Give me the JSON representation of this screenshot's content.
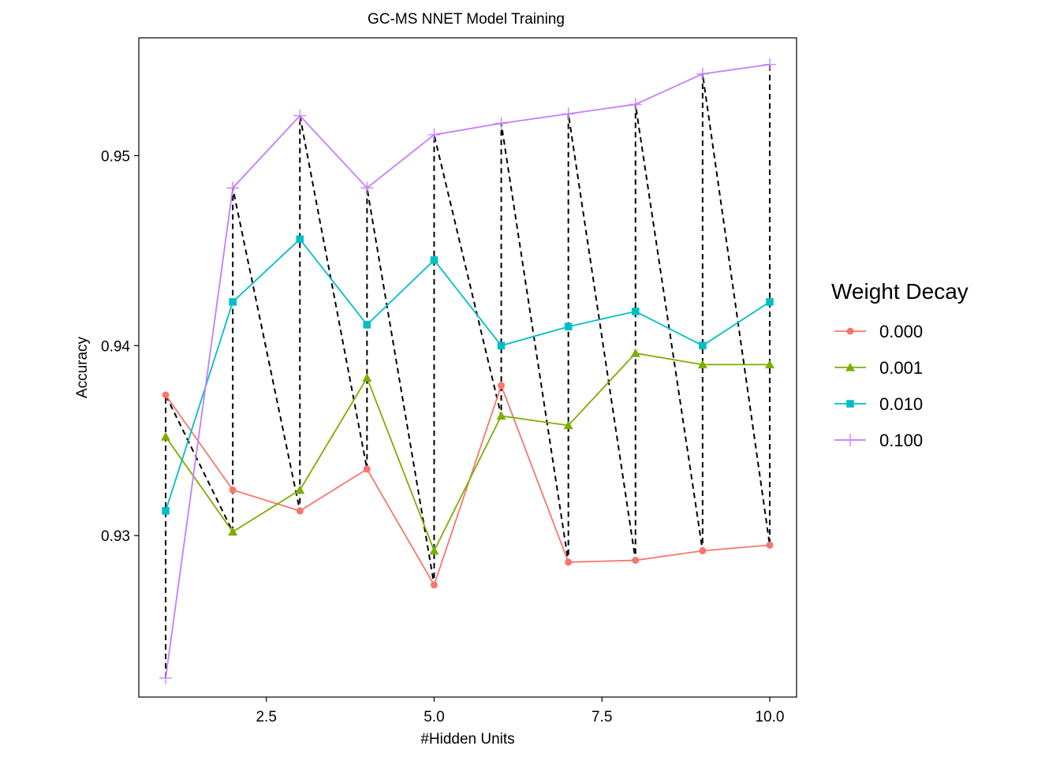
{
  "chart_data": {
    "type": "line",
    "title": "GC-MS NNET Model Training",
    "xlabel": "#Hidden Units",
    "ylabel": "Accuracy",
    "xlim": [
      0.6,
      10.4
    ],
    "ylim": [
      0.9215,
      0.9562
    ],
    "x": [
      1,
      2,
      3,
      4,
      5,
      6,
      7,
      8,
      9,
      10
    ],
    "xticks": [
      2.5,
      5.0,
      7.5,
      10.0
    ],
    "xtick_labels": [
      "2.5",
      "5.0",
      "7.5",
      "10.0"
    ],
    "yticks": [
      0.93,
      0.94,
      0.95
    ],
    "ytick_labels": [
      "0.93",
      "0.94",
      "0.95"
    ],
    "grid": false,
    "legend": {
      "title": "Weight Decay",
      "placement": "right"
    },
    "series": [
      {
        "name": "0.000",
        "color": "#F8766D",
        "marker": "circle",
        "values": [
          0.9374,
          0.9324,
          0.9313,
          0.9335,
          0.9274,
          0.9379,
          0.9286,
          0.9287,
          0.9292,
          0.9295
        ]
      },
      {
        "name": "0.001",
        "color": "#7CAE00",
        "marker": "triangle",
        "values": [
          0.9352,
          0.9302,
          0.9324,
          0.9383,
          0.9292,
          0.9363,
          0.9358,
          0.9396,
          0.939,
          0.939
        ]
      },
      {
        "name": "0.010",
        "color": "#00BFC4",
        "marker": "square",
        "values": [
          0.9313,
          0.9423,
          0.9456,
          0.9411,
          0.9445,
          0.94,
          0.941,
          0.9418,
          0.94,
          0.9423
        ]
      },
      {
        "name": "0.100",
        "color": "#C77CFF",
        "marker": "plus",
        "values": [
          0.9225,
          0.9483,
          0.9521,
          0.9483,
          0.9511,
          0.9517,
          0.9522,
          0.9527,
          0.9543,
          0.9548
        ]
      }
    ],
    "connector": {
      "style": "dashed",
      "color": "#000000"
    }
  }
}
